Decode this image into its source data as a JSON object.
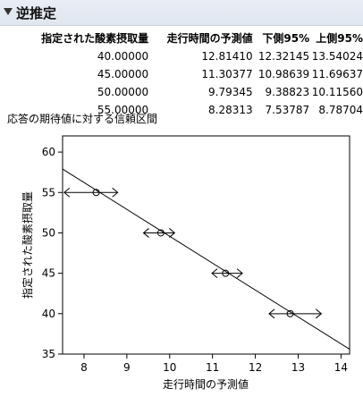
{
  "report": {
    "title": "逆推定"
  },
  "table": {
    "headers": [
      "指定された酸素摂取量",
      "走行時間の予測値",
      "下側95%",
      "上側95%"
    ],
    "rows": [
      [
        "40.00000",
        "12.81410",
        "12.32145",
        "13.54024"
      ],
      [
        "45.00000",
        "11.30377",
        "10.98639",
        "11.69637"
      ],
      [
        "50.00000",
        "9.79345",
        "9.38823",
        "10.11560"
      ],
      [
        "55.00000",
        "8.28313",
        "7.53787",
        "8.78704"
      ]
    ]
  },
  "caption": "応答の期待値に対する信頼区間",
  "chart_data": {
    "type": "scatter",
    "xlabel": "走行時間の予測値",
    "ylabel": "指定された酸素摂取量",
    "xlim": [
      7.5,
      14.2
    ],
    "ylim": [
      35,
      62
    ],
    "xticks": [
      8,
      9,
      10,
      11,
      12,
      13,
      14
    ],
    "yticks": [
      35,
      40,
      45,
      50,
      55,
      60
    ],
    "points": [
      {
        "x": 12.8141,
        "y": 40,
        "lower": 12.32145,
        "upper": 13.54024
      },
      {
        "x": 11.30377,
        "y": 45,
        "lower": 10.98639,
        "upper": 11.69637
      },
      {
        "x": 9.79345,
        "y": 50,
        "lower": 9.38823,
        "upper": 10.1156
      },
      {
        "x": 8.28313,
        "y": 55,
        "lower": 7.53787,
        "upper": 8.78704
      }
    ],
    "fit_line": {
      "x0": 7.5,
      "y0": 57.9,
      "x1": 14.2,
      "y1": 35.6
    },
    "grid": false
  }
}
